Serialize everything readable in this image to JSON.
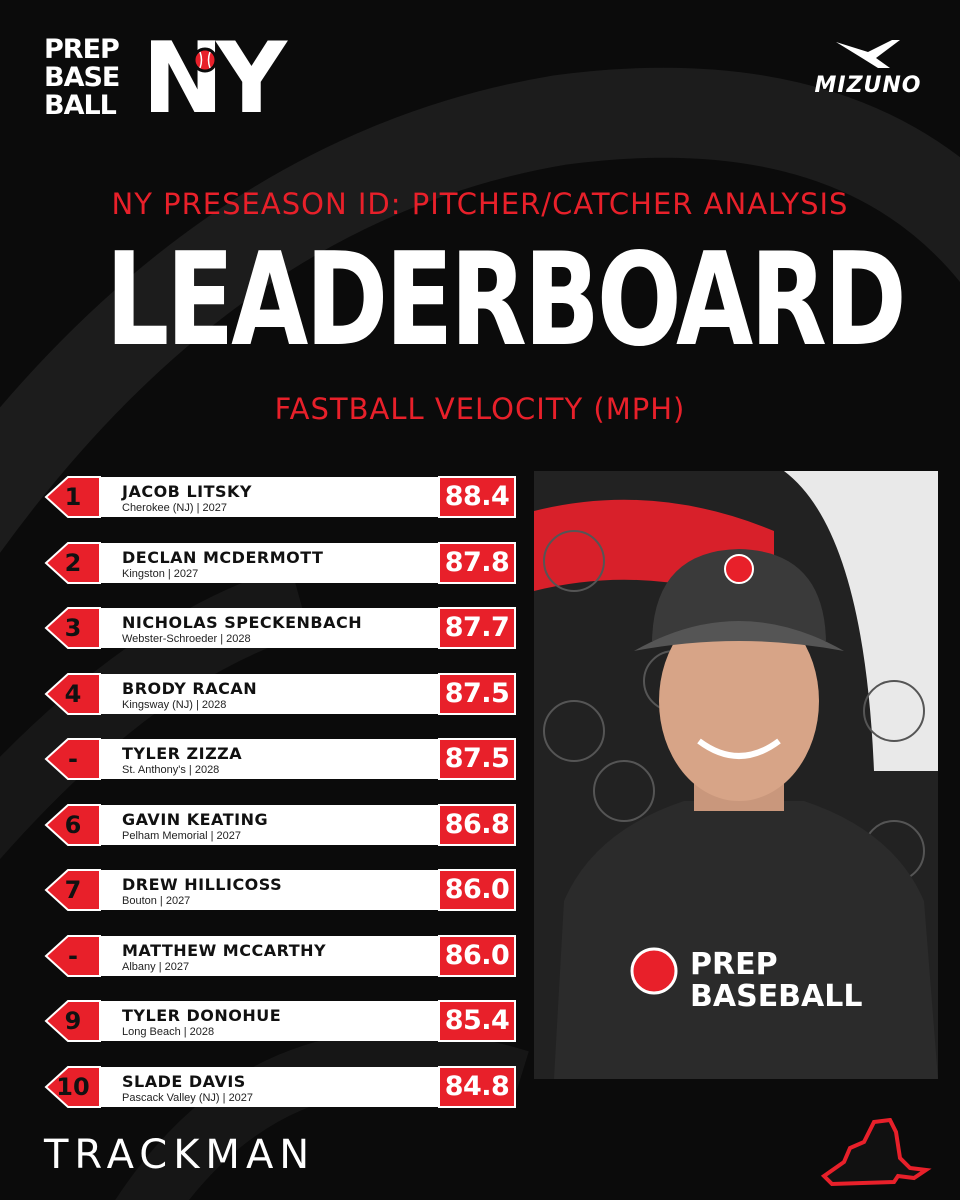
{
  "brand": {
    "logo_line1": "PREP",
    "logo_line2": "BASE",
    "logo_line3": "BALL",
    "logo_region": "NY",
    "sponsor": "MIZUNO"
  },
  "header": {
    "subtitle": "NY PRESEASON ID: PITCHER/CATCHER ANALYSIS",
    "title": "LEADERBOARD",
    "metric": "FASTBALL VELOCITY (MPH)"
  },
  "colors": {
    "accent": "#e8202a",
    "background": "#0b0b0b",
    "bar": "#ffffff"
  },
  "leaderboard": [
    {
      "rank": "1",
      "name": "JACOB LITSKY",
      "info": "Cherokee (NJ) | 2027",
      "velocity": "88.4"
    },
    {
      "rank": "2",
      "name": "DECLAN MCDERMOTT",
      "info": "Kingston | 2027",
      "velocity": "87.8"
    },
    {
      "rank": "3",
      "name": "NICHOLAS SPECKENBACH",
      "info": "Webster-Schroeder | 2028",
      "velocity": "87.7"
    },
    {
      "rank": "4",
      "name": "BRODY RACAN",
      "info": "Kingsway (NJ) | 2028",
      "velocity": "87.5"
    },
    {
      "rank": "-",
      "name": "TYLER ZIZZA",
      "info": "St. Anthony's | 2028",
      "velocity": "87.5"
    },
    {
      "rank": "6",
      "name": "GAVIN KEATING",
      "info": "Pelham Memorial | 2027",
      "velocity": "86.8"
    },
    {
      "rank": "7",
      "name": "DREW HILLICOSS",
      "info": "Bouton | 2027",
      "velocity": "86.0"
    },
    {
      "rank": "-",
      "name": "MATTHEW MCCARTHY",
      "info": "Albany | 2027",
      "velocity": "86.0"
    },
    {
      "rank": "9",
      "name": "TYLER DONOHUE",
      "info": "Long Beach | 2028",
      "velocity": "85.4"
    },
    {
      "rank": "10",
      "name": "SLADE DAVIS",
      "info": "Pascack Valley (NJ) | 2027",
      "velocity": "84.8"
    }
  ],
  "photo": {
    "shirt_line1": "PREP",
    "shirt_line2": "BASEBALL",
    "icon": "player-photo"
  },
  "footer": {
    "partner": "TRACKMAN",
    "icon": "new-york-state-icon"
  }
}
